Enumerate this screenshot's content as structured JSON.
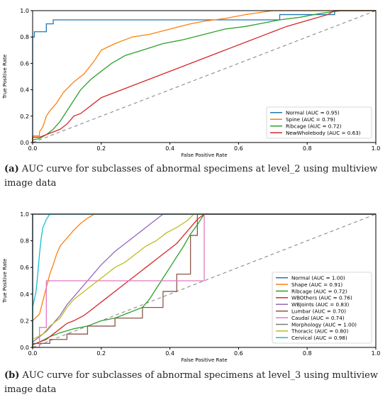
{
  "captions": {
    "a_label": "(a)",
    "a_text": " AUC curve for subclasses of abnormal specimens at level_2 using multiview image data",
    "b_label": "(b)",
    "b_text": " AUC curve for subclasses of abnormal specimens at level_3 using multiview image data"
  },
  "chart_data": [
    {
      "type": "line",
      "xlabel": "False Positive Rate",
      "ylabel": "True Positive Rate",
      "xlim": [
        0,
        1
      ],
      "ylim": [
        0,
        1
      ],
      "xticks": [
        "0.0",
        "0.2",
        "0.4",
        "0.6",
        "0.8",
        "1.0"
      ],
      "yticks": [
        "0.0",
        "0.2",
        "0.4",
        "0.6",
        "0.8",
        "1.0"
      ],
      "legend_position": "lower-right",
      "diagonal": {
        "color": "#808080",
        "style": "dashed"
      },
      "series": [
        {
          "name": "Normal (AUC = 0.95)",
          "color": "#1f77b4",
          "points": [
            [
              0,
              0
            ],
            [
              0,
              0.8
            ],
            [
              0.005,
              0.8
            ],
            [
              0.005,
              0.84
            ],
            [
              0.04,
              0.84
            ],
            [
              0.04,
              0.9
            ],
            [
              0.06,
              0.9
            ],
            [
              0.06,
              0.93
            ],
            [
              0.19,
              0.93
            ],
            [
              0.19,
              0.93
            ],
            [
              0.72,
              0.93
            ],
            [
              0.72,
              0.97
            ],
            [
              0.88,
              0.97
            ],
            [
              0.88,
              1.0
            ],
            [
              1.0,
              1.0
            ]
          ]
        },
        {
          "name": "Spine (AUC = 0.79)",
          "color": "#ff7f0e",
          "points": [
            [
              0,
              0
            ],
            [
              0,
              0.05
            ],
            [
              0.02,
              0.05
            ],
            [
              0.02,
              0.08
            ],
            [
              0.03,
              0.12
            ],
            [
              0.04,
              0.2
            ],
            [
              0.05,
              0.24
            ],
            [
              0.07,
              0.3
            ],
            [
              0.09,
              0.38
            ],
            [
              0.12,
              0.46
            ],
            [
              0.15,
              0.52
            ],
            [
              0.18,
              0.62
            ],
            [
              0.2,
              0.7
            ],
            [
              0.24,
              0.75
            ],
            [
              0.29,
              0.8
            ],
            [
              0.34,
              0.82
            ],
            [
              0.4,
              0.86
            ],
            [
              0.46,
              0.9
            ],
            [
              0.5,
              0.92
            ],
            [
              0.56,
              0.94
            ],
            [
              0.62,
              0.97
            ],
            [
              0.7,
              1.0
            ],
            [
              1.0,
              1.0
            ]
          ]
        },
        {
          "name": "Ribcage (AUC = 0.72)",
          "color": "#2ca02c",
          "points": [
            [
              0,
              0
            ],
            [
              0,
              0.02
            ],
            [
              0.02,
              0.03
            ],
            [
              0.04,
              0.06
            ],
            [
              0.06,
              0.1
            ],
            [
              0.08,
              0.16
            ],
            [
              0.1,
              0.24
            ],
            [
              0.12,
              0.32
            ],
            [
              0.14,
              0.4
            ],
            [
              0.17,
              0.48
            ],
            [
              0.2,
              0.54
            ],
            [
              0.23,
              0.6
            ],
            [
              0.27,
              0.66
            ],
            [
              0.32,
              0.7
            ],
            [
              0.38,
              0.75
            ],
            [
              0.44,
              0.78
            ],
            [
              0.5,
              0.82
            ],
            [
              0.56,
              0.86
            ],
            [
              0.62,
              0.88
            ],
            [
              0.66,
              0.9
            ],
            [
              0.72,
              0.93
            ],
            [
              0.78,
              0.95
            ],
            [
              0.84,
              0.98
            ],
            [
              0.9,
              1.0
            ],
            [
              1.0,
              1.0
            ]
          ]
        },
        {
          "name": "NewWholebody (AUC = 0.63)",
          "color": "#d62728",
          "points": [
            [
              0,
              0
            ],
            [
              0,
              0.04
            ],
            [
              0.02,
              0.04
            ],
            [
              0.04,
              0.06
            ],
            [
              0.06,
              0.08
            ],
            [
              0.08,
              0.1
            ],
            [
              0.1,
              0.14
            ],
            [
              0.12,
              0.2
            ],
            [
              0.14,
              0.22
            ],
            [
              0.16,
              0.26
            ],
            [
              0.18,
              0.3
            ],
            [
              0.2,
              0.34
            ],
            [
              0.22,
              0.36
            ],
            [
              0.26,
              0.4
            ],
            [
              0.3,
              0.44
            ],
            [
              0.34,
              0.48
            ],
            [
              0.38,
              0.52
            ],
            [
              0.42,
              0.56
            ],
            [
              0.46,
              0.6
            ],
            [
              0.5,
              0.64
            ],
            [
              0.54,
              0.68
            ],
            [
              0.58,
              0.72
            ],
            [
              0.62,
              0.76
            ],
            [
              0.66,
              0.8
            ],
            [
              0.7,
              0.84
            ],
            [
              0.74,
              0.88
            ],
            [
              0.78,
              0.91
            ],
            [
              0.82,
              0.94
            ],
            [
              0.86,
              0.97
            ],
            [
              0.88,
              1.0
            ],
            [
              1.0,
              1.0
            ]
          ]
        }
      ]
    },
    {
      "type": "line",
      "xlabel": "False Positive Rate",
      "ylabel": "True Positive Rate",
      "xlim": [
        0,
        1
      ],
      "ylim": [
        0,
        1
      ],
      "xticks": [
        "0.0",
        "0.2",
        "0.4",
        "0.6",
        "0.8",
        "1.0"
      ],
      "yticks": [
        "0.0",
        "0.2",
        "0.4",
        "0.6",
        "0.8",
        "1.0"
      ],
      "legend_position": "lower-right",
      "diagonal": {
        "color": "#808080",
        "style": "dashed"
      },
      "series": [
        {
          "name": "Normal (AUC = 1.00)",
          "color": "#1f77b4",
          "points": [
            [
              0,
              0
            ],
            [
              0,
              1.0
            ],
            [
              1.0,
              1.0
            ]
          ]
        },
        {
          "name": "Shape (AUC = 0.91)",
          "color": "#ff7f0e",
          "points": [
            [
              0,
              0
            ],
            [
              0,
              0.2
            ],
            [
              0.02,
              0.25
            ],
            [
              0.03,
              0.35
            ],
            [
              0.04,
              0.45
            ],
            [
              0.05,
              0.55
            ],
            [
              0.06,
              0.62
            ],
            [
              0.07,
              0.7
            ],
            [
              0.08,
              0.76
            ],
            [
              0.1,
              0.82
            ],
            [
              0.12,
              0.88
            ],
            [
              0.14,
              0.93
            ],
            [
              0.16,
              0.97
            ],
            [
              0.18,
              1.0
            ],
            [
              1.0,
              1.0
            ]
          ]
        },
        {
          "name": "Ribcage (AUC = 0.72)",
          "color": "#2ca02c",
          "points": [
            [
              0,
              0
            ],
            [
              0,
              0.02
            ],
            [
              0.02,
              0.04
            ],
            [
              0.05,
              0.08
            ],
            [
              0.08,
              0.11
            ],
            [
              0.12,
              0.14
            ],
            [
              0.16,
              0.16
            ],
            [
              0.2,
              0.2
            ],
            [
              0.24,
              0.22
            ],
            [
              0.28,
              0.26
            ],
            [
              0.32,
              0.3
            ],
            [
              0.34,
              0.36
            ],
            [
              0.36,
              0.44
            ],
            [
              0.38,
              0.52
            ],
            [
              0.4,
              0.6
            ],
            [
              0.42,
              0.68
            ],
            [
              0.44,
              0.76
            ],
            [
              0.46,
              0.85
            ],
            [
              0.48,
              0.92
            ],
            [
              0.5,
              1.0
            ],
            [
              1.0,
              1.0
            ]
          ]
        },
        {
          "name": "WBOthers (AUC = 0.76)",
          "color": "#d62728",
          "points": [
            [
              0,
              0
            ],
            [
              0,
              0.02
            ],
            [
              0.02,
              0.04
            ],
            [
              0.04,
              0.06
            ],
            [
              0.06,
              0.1
            ],
            [
              0.08,
              0.14
            ],
            [
              0.1,
              0.18
            ],
            [
              0.12,
              0.2
            ],
            [
              0.15,
              0.24
            ],
            [
              0.18,
              0.3
            ],
            [
              0.21,
              0.36
            ],
            [
              0.24,
              0.42
            ],
            [
              0.27,
              0.48
            ],
            [
              0.3,
              0.54
            ],
            [
              0.33,
              0.6
            ],
            [
              0.36,
              0.66
            ],
            [
              0.39,
              0.72
            ],
            [
              0.42,
              0.78
            ],
            [
              0.44,
              0.84
            ],
            [
              0.46,
              0.9
            ],
            [
              0.48,
              0.96
            ],
            [
              0.5,
              1.0
            ],
            [
              1.0,
              1.0
            ]
          ]
        },
        {
          "name": "WBJoints (AUC = 0.83)",
          "color": "#9467bd",
          "points": [
            [
              0,
              0
            ],
            [
              0,
              0.04
            ],
            [
              0.02,
              0.08
            ],
            [
              0.04,
              0.12
            ],
            [
              0.06,
              0.18
            ],
            [
              0.08,
              0.24
            ],
            [
              0.1,
              0.32
            ],
            [
              0.12,
              0.38
            ],
            [
              0.14,
              0.44
            ],
            [
              0.16,
              0.5
            ],
            [
              0.18,
              0.56
            ],
            [
              0.2,
              0.62
            ],
            [
              0.22,
              0.67
            ],
            [
              0.24,
              0.72
            ],
            [
              0.26,
              0.76
            ],
            [
              0.28,
              0.8
            ],
            [
              0.3,
              0.84
            ],
            [
              0.32,
              0.88
            ],
            [
              0.34,
              0.92
            ],
            [
              0.36,
              0.96
            ],
            [
              0.38,
              1.0
            ],
            [
              1.0,
              1.0
            ]
          ]
        },
        {
          "name": "Lumbar (AUC = 0.70)",
          "color": "#8c564b",
          "points": [
            [
              0,
              0
            ],
            [
              0,
              0.03
            ],
            [
              0.05,
              0.03
            ],
            [
              0.05,
              0.06
            ],
            [
              0.1,
              0.06
            ],
            [
              0.1,
              0.1
            ],
            [
              0.16,
              0.1
            ],
            [
              0.16,
              0.16
            ],
            [
              0.24,
              0.16
            ],
            [
              0.24,
              0.22
            ],
            [
              0.32,
              0.22
            ],
            [
              0.32,
              0.3
            ],
            [
              0.38,
              0.3
            ],
            [
              0.38,
              0.42
            ],
            [
              0.42,
              0.42
            ],
            [
              0.42,
              0.55
            ],
            [
              0.46,
              0.55
            ],
            [
              0.46,
              0.84
            ],
            [
              0.48,
              0.84
            ],
            [
              0.48,
              1.0
            ],
            [
              1.0,
              1.0
            ]
          ]
        },
        {
          "name": "Caudal (AUC = 0.74)",
          "color": "#e377c2",
          "points": [
            [
              0,
              0
            ],
            [
              0.02,
              0
            ],
            [
              0.02,
              0.15
            ],
            [
              0.04,
              0.15
            ],
            [
              0.04,
              0.5
            ],
            [
              0.5,
              0.5
            ],
            [
              0.5,
              1.0
            ],
            [
              1.0,
              1.0
            ]
          ]
        },
        {
          "name": "Morphology (AUC = 1.00)",
          "color": "#7f7f7f",
          "points": [
            [
              0,
              0
            ],
            [
              0,
              1.0
            ],
            [
              1.0,
              1.0
            ]
          ]
        },
        {
          "name": "Thoracic (AUC = 0.80)",
          "color": "#bcbd22",
          "points": [
            [
              0,
              0
            ],
            [
              0,
              0.06
            ],
            [
              0.03,
              0.1
            ],
            [
              0.05,
              0.16
            ],
            [
              0.08,
              0.22
            ],
            [
              0.1,
              0.3
            ],
            [
              0.12,
              0.36
            ],
            [
              0.15,
              0.42
            ],
            [
              0.18,
              0.48
            ],
            [
              0.21,
              0.54
            ],
            [
              0.24,
              0.6
            ],
            [
              0.27,
              0.64
            ],
            [
              0.3,
              0.7
            ],
            [
              0.33,
              0.76
            ],
            [
              0.36,
              0.8
            ],
            [
              0.39,
              0.86
            ],
            [
              0.42,
              0.9
            ],
            [
              0.45,
              0.95
            ],
            [
              0.47,
              1.0
            ],
            [
              1.0,
              1.0
            ]
          ]
        },
        {
          "name": "Cervical (AUC = 0.98)",
          "color": "#17becf",
          "points": [
            [
              0,
              0
            ],
            [
              0,
              0.3
            ],
            [
              0.01,
              0.42
            ],
            [
              0.015,
              0.55
            ],
            [
              0.02,
              0.7
            ],
            [
              0.025,
              0.82
            ],
            [
              0.03,
              0.9
            ],
            [
              0.04,
              0.96
            ],
            [
              0.05,
              1.0
            ],
            [
              1.0,
              1.0
            ]
          ]
        }
      ]
    }
  ]
}
